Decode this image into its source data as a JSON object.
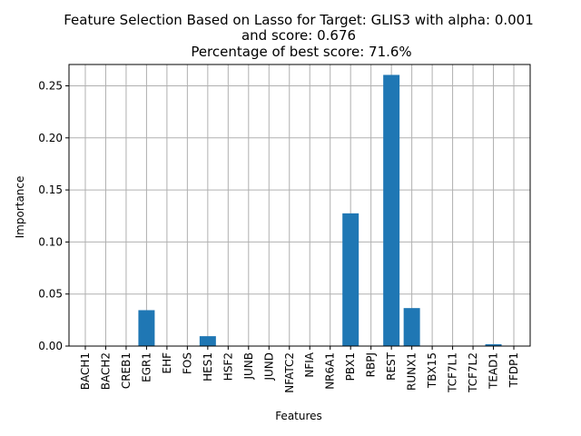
{
  "chart_data": {
    "type": "bar",
    "title_lines": [
      "Feature Selection Based on Lasso for Target: GLIS3 with alpha: 0.001",
      "and score: 0.676",
      "Percentage of best score: 71.6%"
    ],
    "xlabel": "Features",
    "ylabel": "Importance",
    "categories": [
      "BACH1",
      "BACH2",
      "CREB1",
      "EGR1",
      "EHF",
      "FOS",
      "HES1",
      "HSF2",
      "JUNB",
      "JUND",
      "NFATC2",
      "NFIA",
      "NR6A1",
      "PBX1",
      "RBPJ",
      "REST",
      "RUNX1",
      "TBX15",
      "TCF7L1",
      "TCF7L2",
      "TEAD1",
      "TFDP1"
    ],
    "values": [
      0,
      0,
      0,
      0.0345,
      0,
      0,
      0.0095,
      0,
      0,
      0,
      0,
      0,
      0,
      0.1275,
      0,
      0.2605,
      0.0365,
      0,
      0,
      0,
      0.0018,
      0
    ],
    "ylim": [
      0,
      0.2705
    ],
    "yticks": [
      0.0,
      0.05,
      0.1,
      0.15,
      0.2,
      0.25
    ],
    "ytick_labels": [
      "0.00",
      "0.05",
      "0.10",
      "0.15",
      "0.20",
      "0.25"
    ],
    "grid": true,
    "bar_color": "#1f77b4",
    "grid_color": "#b0b0b0"
  }
}
